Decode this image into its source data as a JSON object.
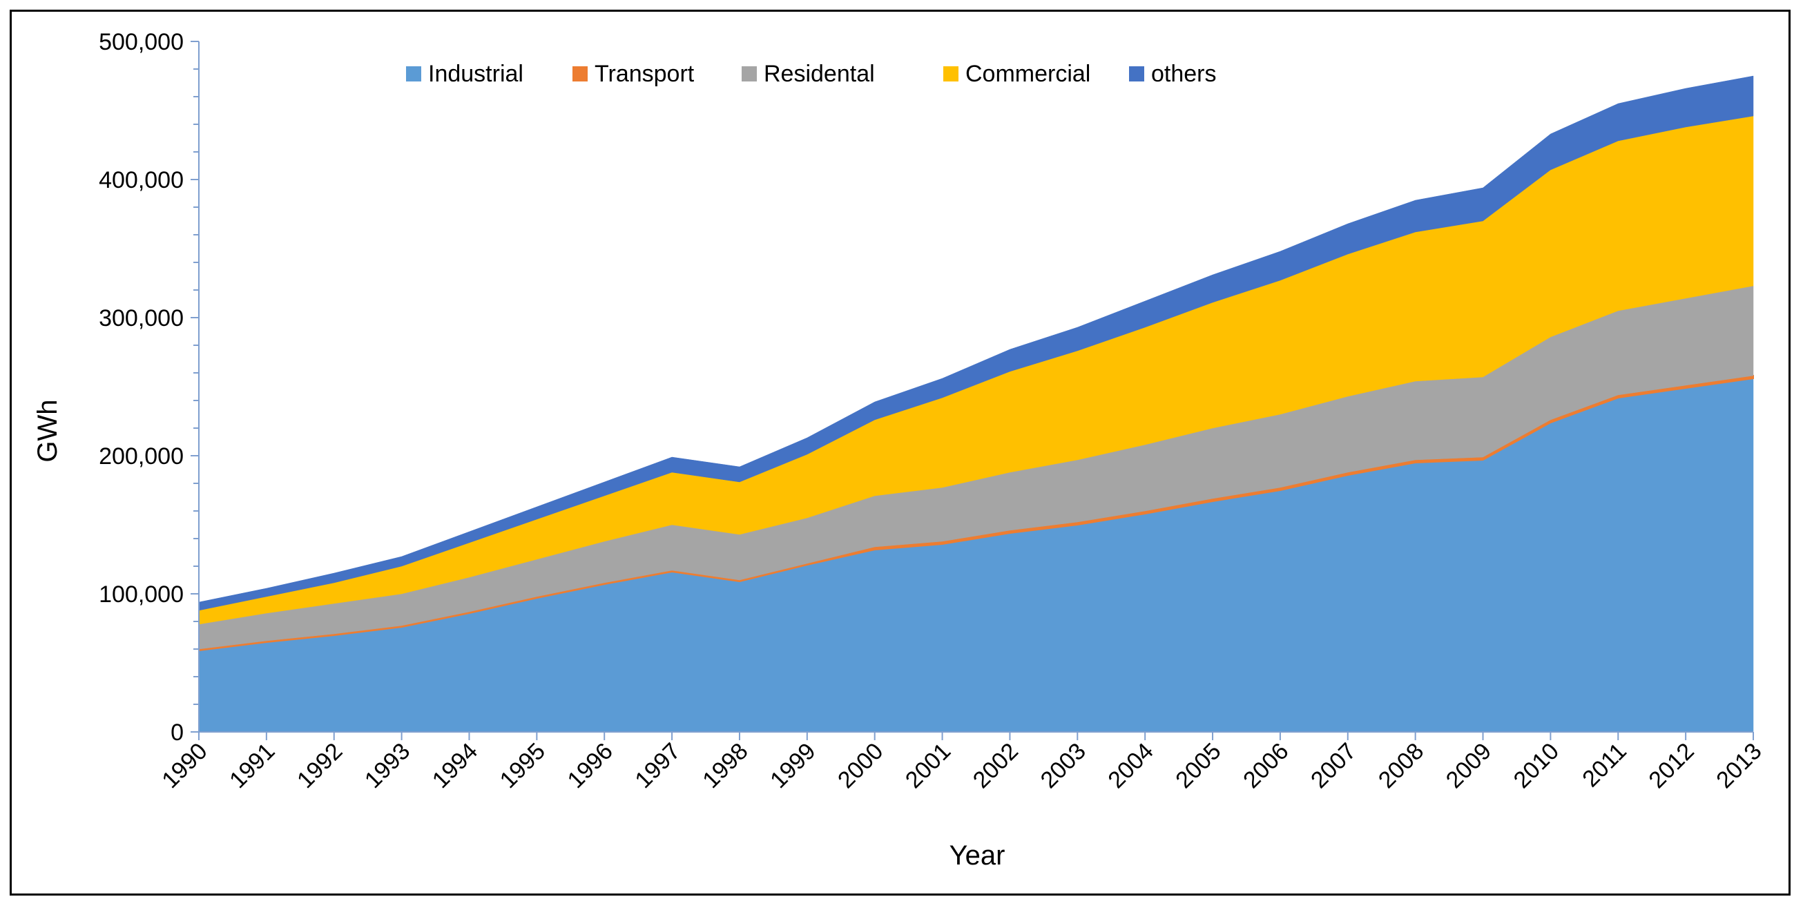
{
  "chart_data": {
    "type": "area",
    "stacked": true,
    "title": "",
    "xlabel": "Year",
    "ylabel": "GWh",
    "ylim": [
      0,
      500000
    ],
    "y_ticks": [
      0,
      100000,
      200000,
      300000,
      400000,
      500000
    ],
    "y_tick_labels": [
      "0",
      "100,000",
      "200,000",
      "300,000",
      "400,000",
      "500,000"
    ],
    "legend_position": "top-center",
    "categories": [
      "1990",
      "1991",
      "1992",
      "1993",
      "1994",
      "1995",
      "1996",
      "1997",
      "1998",
      "1999",
      "2000",
      "2001",
      "2002",
      "2003",
      "2004",
      "2005",
      "2006",
      "2007",
      "2008",
      "2009",
      "2010",
      "2011",
      "2012",
      "2013"
    ],
    "series": [
      {
        "name": "Industrial",
        "color": "#5b9bd5",
        "values": [
          59000,
          65000,
          70000,
          76000,
          86000,
          97000,
          107000,
          116000,
          109000,
          121000,
          132000,
          136000,
          144000,
          150000,
          158000,
          167000,
          175000,
          186000,
          195000,
          197000,
          224000,
          242000,
          249000,
          256000
        ]
      },
      {
        "name": "Transport",
        "color": "#ed7d31",
        "values": [
          1000,
          1000,
          1000,
          1000,
          1000,
          1000,
          1000,
          1000,
          1000,
          1000,
          2000,
          2000,
          2000,
          2000,
          2000,
          2000,
          2000,
          2000,
          2000,
          2000,
          2000,
          2000,
          2000,
          2000
        ]
      },
      {
        "name": "Residental",
        "color": "#a5a5a5",
        "values": [
          18000,
          20000,
          22000,
          23000,
          25000,
          27000,
          30000,
          33000,
          33000,
          33000,
          37000,
          39000,
          42000,
          45000,
          48000,
          51000,
          53000,
          55000,
          57000,
          58000,
          60000,
          61000,
          63000,
          65000
        ]
      },
      {
        "name": "Commercial",
        "color": "#ffc000",
        "values": [
          10000,
          12000,
          15000,
          20000,
          25000,
          29000,
          33000,
          38000,
          38000,
          46000,
          55000,
          65000,
          73000,
          79000,
          85000,
          91000,
          97000,
          103000,
          108000,
          113000,
          121000,
          123000,
          124000,
          123000
        ]
      },
      {
        "name": "others",
        "color": "#4472c4",
        "values": [
          6000,
          6000,
          7000,
          7000,
          8000,
          9000,
          10000,
          11000,
          11000,
          12000,
          13000,
          14000,
          16000,
          17000,
          19000,
          20000,
          21000,
          22000,
          23000,
          24000,
          26000,
          27000,
          28000,
          29000
        ]
      }
    ]
  }
}
